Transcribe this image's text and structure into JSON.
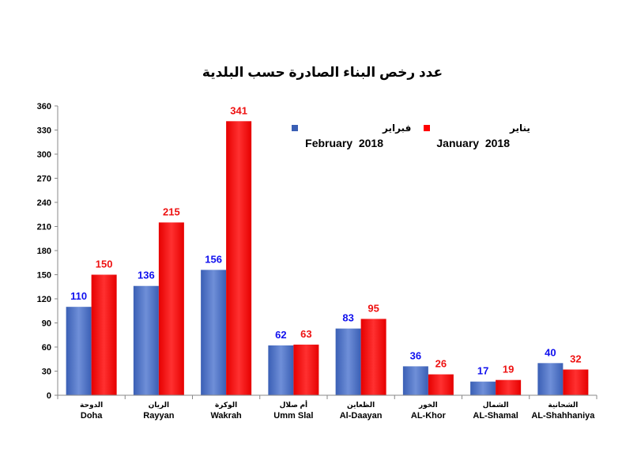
{
  "chart_data": {
    "type": "bar",
    "title": "عدد رخص البناء الصادرة حسب البلدية",
    "categories": [
      {
        "ar": "الدوحة",
        "en": "Doha"
      },
      {
        "ar": "الريان",
        "en": "Rayyan"
      },
      {
        "ar": "الوكرة",
        "en": "Wakrah"
      },
      {
        "ar": "أم صلال",
        "en": "Umm Slal"
      },
      {
        "ar": "الظعاين",
        "en": "Al-Daayan"
      },
      {
        "ar": "الخور",
        "en": "AL-Khor"
      },
      {
        "ar": "الشمال",
        "en": "AL-Shamal"
      },
      {
        "ar": "الشحانية",
        "en": "AL-Shahhaniya"
      }
    ],
    "series": [
      {
        "name_ar": "فبراير",
        "name_en": "February  2018",
        "color": "#4f73c7",
        "label_color": "#1010ee",
        "values": [
          110,
          136,
          156,
          62,
          83,
          36,
          17,
          40
        ]
      },
      {
        "name_ar": "يناير",
        "name_en": "January  2018",
        "color": "#ff0000",
        "label_color": "#ee1111",
        "values": [
          150,
          215,
          341,
          63,
          95,
          26,
          19,
          32
        ]
      }
    ],
    "ylim": [
      0,
      360
    ],
    "yticks": [
      0,
      30,
      60,
      90,
      120,
      150,
      180,
      210,
      240,
      270,
      300,
      330,
      360
    ],
    "grid": false,
    "legend": "top-right"
  }
}
